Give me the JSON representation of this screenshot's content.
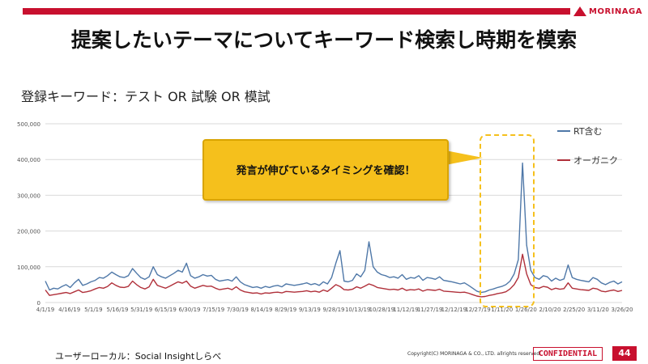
{
  "header": {
    "logo_text": "MORINAGA",
    "title": "提案したいテーマについてキーワード検索し時期を模索",
    "subtitle": "登録キーワード：テスト OR 試験 OR 模試"
  },
  "callout": {
    "text": "発言が伸びているタイミングを確認！"
  },
  "footer": {
    "source": "ユーザーローカル：Social Insightしらべ",
    "copyright": "Copyright(C) MORINAGA & CO., LTD. allrights reserved.",
    "confidential": "CONFIDENTIAL",
    "page": "44"
  },
  "colors": {
    "brand": "#c8102e",
    "callout": "#f5c01c",
    "rt_series": "#4f78a8",
    "organic_series": "#b0303a"
  },
  "chart_data": {
    "type": "line",
    "ylim": [
      0,
      500000
    ],
    "yticks": [
      0,
      100000,
      200000,
      300000,
      400000,
      500000
    ],
    "ytick_labels": [
      "0",
      "100,000",
      "200,000",
      "300,000",
      "400,000",
      "500,000"
    ],
    "xtick_labels": [
      "4/1/19",
      "4/16/19",
      "5/1/19",
      "5/16/19",
      "5/31/19",
      "6/15/19",
      "6/30/19",
      "7/15/19",
      "7/30/19",
      "8/14/19",
      "8/29/19",
      "9/13/19",
      "9/28/19",
      "10/13/19",
      "10/28/19",
      "11/12/19",
      "11/27/19",
      "12/12/19",
      "12/27/19",
      "1/11/20",
      "1/26/20",
      "2/10/20",
      "2/25/20",
      "3/11/20",
      "3/26/20"
    ],
    "grid": true,
    "legend_position": "top-right",
    "series": [
      {
        "name": "RT含む",
        "values": [
          60000,
          35000,
          40000,
          38000,
          45000,
          50000,
          42000,
          55000,
          65000,
          48000,
          52000,
          58000,
          62000,
          70000,
          68000,
          75000,
          85000,
          78000,
          72000,
          70000,
          75000,
          95000,
          82000,
          70000,
          65000,
          72000,
          100000,
          78000,
          72000,
          68000,
          75000,
          82000,
          90000,
          85000,
          110000,
          75000,
          68000,
          72000,
          78000,
          74000,
          76000,
          65000,
          60000,
          62000,
          64000,
          60000,
          72000,
          58000,
          50000,
          46000,
          42000,
          44000,
          40000,
          45000,
          42000,
          46000,
          48000,
          44000,
          52000,
          50000,
          48000,
          50000,
          52000,
          55000,
          50000,
          53000,
          48000,
          58000,
          52000,
          70000,
          110000,
          145000,
          60000,
          58000,
          62000,
          80000,
          72000,
          90000,
          170000,
          100000,
          85000,
          78000,
          75000,
          70000,
          72000,
          68000,
          78000,
          65000,
          70000,
          68000,
          75000,
          62000,
          70000,
          68000,
          65000,
          72000,
          62000,
          60000,
          58000,
          55000,
          52000,
          55000,
          48000,
          40000,
          32000,
          28000,
          30000,
          35000,
          38000,
          42000,
          45000,
          50000,
          60000,
          80000,
          120000,
          390000,
          160000,
          90000,
          70000,
          65000,
          75000,
          72000,
          60000,
          68000,
          62000,
          66000,
          105000,
          70000,
          65000,
          62000,
          60000,
          58000,
          70000,
          65000,
          55000,
          50000,
          56000,
          60000,
          52000,
          58000
        ],
        "color": "#4f78a8"
      },
      {
        "name": "オーガニク",
        "values": [
          35000,
          20000,
          22000,
          24000,
          26000,
          28000,
          25000,
          30000,
          35000,
          28000,
          30000,
          33000,
          38000,
          42000,
          40000,
          45000,
          55000,
          48000,
          43000,
          42000,
          45000,
          60000,
          50000,
          42000,
          38000,
          44000,
          65000,
          48000,
          44000,
          40000,
          46000,
          52000,
          58000,
          54000,
          60000,
          46000,
          40000,
          44000,
          48000,
          45000,
          46000,
          40000,
          36000,
          38000,
          40000,
          36000,
          44000,
          35000,
          30000,
          28000,
          26000,
          27000,
          24000,
          27000,
          26000,
          28000,
          29000,
          27000,
          31000,
          30000,
          29000,
          30000,
          31000,
          33000,
          30000,
          32000,
          29000,
          35000,
          31000,
          40000,
          50000,
          45000,
          36000,
          35000,
          37000,
          44000,
          40000,
          46000,
          52000,
          48000,
          42000,
          40000,
          38000,
          36000,
          37000,
          35000,
          40000,
          34000,
          36000,
          35000,
          38000,
          32000,
          36000,
          35000,
          34000,
          37000,
          32000,
          31000,
          30000,
          29000,
          28000,
          29000,
          26000,
          22000,
          18000,
          16000,
          17000,
          20000,
          22000,
          25000,
          27000,
          30000,
          38000,
          50000,
          70000,
          135000,
          80000,
          50000,
          42000,
          40000,
          45000,
          43000,
          36000,
          40000,
          37000,
          39000,
          55000,
          40000,
          38000,
          36000,
          35000,
          34000,
          40000,
          38000,
          32000,
          30000,
          33000,
          35000,
          31000,
          34000
        ]
      }
    ]
  }
}
